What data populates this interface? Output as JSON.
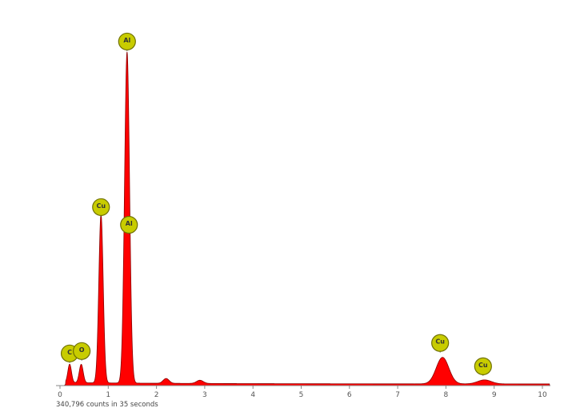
{
  "chart_data": {
    "type": "area",
    "title": "",
    "xlabel": "",
    "ylabel": "",
    "xlim": [
      0,
      10
    ],
    "ylim": [
      0,
      420
    ],
    "x_ticks": [
      "0",
      "1",
      "2",
      "3",
      "4",
      "5",
      "6",
      "7",
      "8",
      "9",
      "10"
    ],
    "grid": false,
    "fill_color": "#ff0000",
    "marker_color": "#c8cc00",
    "peaks": [
      {
        "energy": 0.2,
        "intensity": 23
      },
      {
        "energy": 0.44,
        "intensity": 23
      },
      {
        "energy": 0.85,
        "intensity": 210
      },
      {
        "energy": 1.39,
        "intensity": 412
      },
      {
        "energy": 2.2,
        "intensity": 6
      },
      {
        "energy": 2.9,
        "intensity": 4
      },
      {
        "energy": 7.93,
        "intensity": 33
      },
      {
        "energy": 8.8,
        "intensity": 5
      }
    ],
    "annotations": [
      {
        "label": "C",
        "energy": 0.2,
        "level": 40
      },
      {
        "label": "O",
        "energy": 0.45,
        "level": 43
      },
      {
        "label": "Cu",
        "energy": 0.85,
        "level": 222
      },
      {
        "label": "Al",
        "energy": 1.39,
        "level": 428
      },
      {
        "label": "Al",
        "energy": 1.43,
        "level": 200
      },
      {
        "label": "Cu",
        "energy": 7.88,
        "level": 53
      },
      {
        "label": "Cu",
        "energy": 8.77,
        "level": 24
      }
    ],
    "footer": "340,796 counts in 35 seconds"
  }
}
